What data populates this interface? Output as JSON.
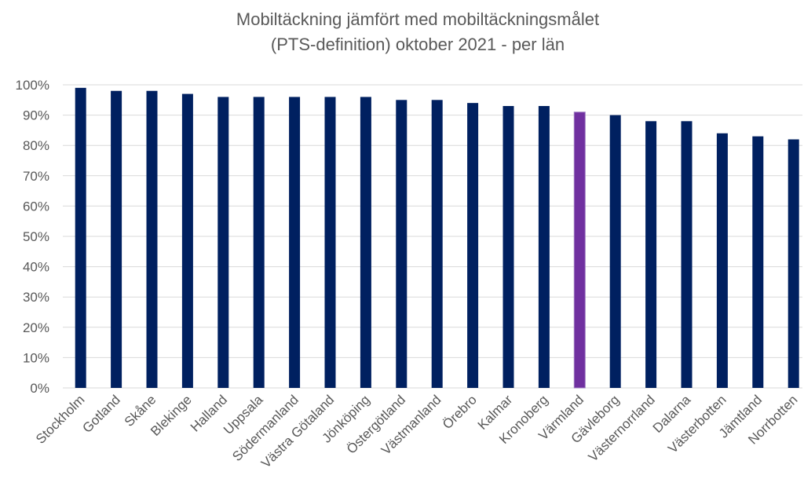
{
  "chart_data": {
    "type": "bar",
    "title": [
      "Mobiltäckning jämfört med mobiltäckningsmålet",
      "(PTS-definition) oktober 2021 - per län"
    ],
    "categories": [
      "Stockholm",
      "Gotland",
      "Skåne",
      "Blekinge",
      "Halland",
      "Uppsala",
      "Södermanland",
      "Västra Götaland",
      "Jönköping",
      "Östergötland",
      "Västmanland",
      "Örebro",
      "Kalmar",
      "Kronoberg",
      "Värmland",
      "Gävleborg",
      "Västernorrland",
      "Dalarna",
      "Västerbotten",
      "Jämtland",
      "Norrbotten"
    ],
    "values": [
      99,
      98,
      98,
      97,
      96,
      96,
      96,
      96,
      96,
      95,
      95,
      94,
      93,
      93,
      91,
      90,
      88,
      88,
      84,
      83,
      82
    ],
    "colors": [
      "#002060",
      "#002060",
      "#002060",
      "#002060",
      "#002060",
      "#002060",
      "#002060",
      "#002060",
      "#002060",
      "#002060",
      "#002060",
      "#002060",
      "#002060",
      "#002060",
      "#7030a0",
      "#002060",
      "#002060",
      "#002060",
      "#002060",
      "#002060",
      "#002060"
    ],
    "ylim": [
      0,
      100
    ],
    "yticks": [
      {
        "value": 0,
        "label": "0%"
      },
      {
        "value": 10,
        "label": "10%"
      },
      {
        "value": 20,
        "label": "20%"
      },
      {
        "value": 30,
        "label": "30%"
      },
      {
        "value": 40,
        "label": "40%"
      },
      {
        "value": 50,
        "label": "50%"
      },
      {
        "value": 60,
        "label": "60%"
      },
      {
        "value": 70,
        "label": "70%"
      },
      {
        "value": 80,
        "label": "80%"
      },
      {
        "value": 90,
        "label": "90%"
      },
      {
        "value": 100,
        "label": "100%"
      }
    ],
    "grid": true
  }
}
